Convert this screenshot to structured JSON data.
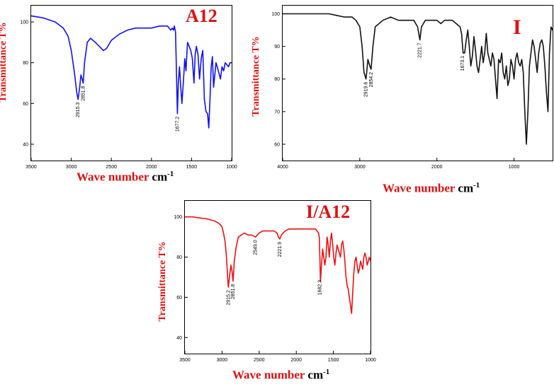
{
  "chart_data": [
    {
      "type": "line",
      "tag": "A12",
      "xlabel_word": "Wave number",
      "xlabel_unit": "cm",
      "xlabel_exp": "-1",
      "ylabel": "Transmittance T%",
      "xlim": [
        3500,
        1000
      ],
      "ylim": [
        32,
        108
      ],
      "xticks": [
        3500,
        3000,
        2500,
        2000,
        1500,
        1000
      ],
      "yticks": [
        40,
        60,
        80,
        100
      ],
      "color": "#1010ee",
      "x": [
        3500,
        3350,
        3200,
        3100,
        3040,
        3000,
        2960,
        2930,
        2915,
        2895,
        2880,
        2865,
        2851,
        2835,
        2800,
        2760,
        2700,
        2650,
        2600,
        2560,
        2500,
        2400,
        2300,
        2200,
        2100,
        2000,
        1900,
        1800,
        1760,
        1740,
        1725,
        1715,
        1700,
        1690,
        1677,
        1665,
        1650,
        1635,
        1620,
        1600,
        1585,
        1570,
        1550,
        1530,
        1510,
        1490,
        1470,
        1455,
        1440,
        1420,
        1400,
        1380,
        1360,
        1340,
        1320,
        1300,
        1285,
        1270,
        1255,
        1240,
        1225,
        1210,
        1195,
        1180,
        1160,
        1140,
        1120,
        1100,
        1080,
        1060,
        1040,
        1020,
        1000
      ],
      "y": [
        103,
        102,
        100,
        97,
        93,
        86,
        75,
        65,
        62,
        68,
        74,
        72,
        70,
        80,
        90,
        92,
        90,
        88,
        86,
        87,
        91,
        94,
        96,
        97,
        97,
        97,
        98,
        98,
        96,
        97,
        96,
        98,
        95,
        78,
        55,
        70,
        78,
        68,
        60,
        72,
        82,
        76,
        90,
        88,
        86,
        82,
        70,
        84,
        88,
        84,
        72,
        82,
        86,
        62,
        56,
        55,
        48,
        62,
        78,
        83,
        68,
        74,
        80,
        78,
        75,
        72,
        78,
        76,
        80,
        79,
        78,
        80,
        80
      ],
      "annotations": [
        {
          "label": "2915.3",
          "x": 2915,
          "y": 62
        },
        {
          "label": "2851.8",
          "x": 2851,
          "y": 70
        },
        {
          "label": "1677.2",
          "x": 1677,
          "y": 55
        }
      ]
    },
    {
      "type": "line",
      "tag": "I",
      "xlabel_word": "Wave number",
      "xlabel_unit": "cm",
      "xlabel_exp": "-1",
      "ylabel": "Transmittance T%",
      "xlim": [
        4000,
        500
      ],
      "ylim": [
        55,
        102.5
      ],
      "xticks": [
        4000,
        3000,
        2000,
        1000
      ],
      "yticks": [
        60,
        70,
        80,
        90,
        100
      ],
      "color": "#111111",
      "x": [
        4000,
        3800,
        3600,
        3400,
        3300,
        3200,
        3100,
        3050,
        3000,
        2970,
        2945,
        2919,
        2895,
        2870,
        2854,
        2830,
        2800,
        2700,
        2600,
        2500,
        2400,
        2300,
        2250,
        2221,
        2200,
        2150,
        2100,
        2000,
        1950,
        1900,
        1850,
        1800,
        1750,
        1700,
        1680,
        1660,
        1640,
        1620,
        1600,
        1580,
        1560,
        1540,
        1520,
        1500,
        1480,
        1460,
        1440,
        1420,
        1400,
        1380,
        1360,
        1340,
        1320,
        1300,
        1280,
        1260,
        1240,
        1220,
        1200,
        1180,
        1160,
        1140,
        1120,
        1100,
        1080,
        1060,
        1040,
        1020,
        1000,
        980,
        960,
        940,
        920,
        900,
        880,
        860,
        840,
        820,
        800,
        780,
        760,
        740,
        720,
        700,
        680,
        660,
        640,
        620,
        600,
        580,
        560,
        540,
        520,
        500
      ],
      "y": [
        100,
        100,
        100,
        100,
        99.5,
        99,
        99,
        98,
        96,
        90,
        82,
        80,
        86,
        84,
        83,
        90,
        96,
        98,
        99,
        98,
        98,
        98,
        96,
        92,
        96,
        98,
        98,
        98,
        97,
        98,
        98,
        98,
        97,
        96,
        94,
        88,
        88,
        92,
        95,
        90,
        84,
        87,
        93,
        89,
        84,
        82,
        86,
        90,
        85,
        88,
        94,
        88,
        86,
        84,
        88,
        86,
        80,
        74,
        86,
        85,
        88,
        82,
        80,
        84,
        78,
        80,
        86,
        84,
        80,
        86,
        88,
        85,
        84,
        86,
        82,
        70,
        60,
        70,
        84,
        88,
        92,
        90,
        86,
        82,
        88,
        91,
        92,
        90,
        84,
        76,
        70,
        88,
        96,
        95
      ],
      "annotations": [
        {
          "label": "2919.6",
          "x": 2919,
          "y": 80
        },
        {
          "label": "2854.2",
          "x": 2854,
          "y": 83
        },
        {
          "label": "2221.7",
          "x": 2221,
          "y": 92
        },
        {
          "label": "1673.1",
          "x": 1665,
          "y": 88
        }
      ]
    },
    {
      "type": "line",
      "tag": "I/A12",
      "xlabel_word": "Wave number",
      "xlabel_unit": "cm",
      "xlabel_exp": "-1",
      "ylabel": "Transmittance T%",
      "xlim": [
        3500,
        1000
      ],
      "ylim": [
        32,
        108
      ],
      "xticks": [
        3500,
        3000,
        2500,
        2000,
        1500,
        1000
      ],
      "yticks": [
        40,
        60,
        80,
        100
      ],
      "color": "#ee1111",
      "x": [
        3500,
        3400,
        3300,
        3200,
        3100,
        3050,
        3020,
        3000,
        2980,
        2960,
        2940,
        2925,
        2915,
        2900,
        2880,
        2865,
        2851,
        2835,
        2810,
        2780,
        2740,
        2700,
        2650,
        2600,
        2549,
        2500,
        2450,
        2400,
        2350,
        2300,
        2260,
        2240,
        2221,
        2200,
        2150,
        2100,
        2000,
        1900,
        1800,
        1740,
        1720,
        1700,
        1690,
        1682,
        1675,
        1660,
        1645,
        1630,
        1615,
        1600,
        1585,
        1570,
        1555,
        1540,
        1525,
        1510,
        1495,
        1480,
        1465,
        1450,
        1435,
        1420,
        1405,
        1390,
        1375,
        1360,
        1345,
        1330,
        1315,
        1300,
        1285,
        1270,
        1255,
        1240,
        1225,
        1210,
        1195,
        1180,
        1165,
        1150,
        1135,
        1120,
        1105,
        1090,
        1075,
        1060,
        1045,
        1030,
        1015,
        1000
      ],
      "y": [
        100,
        100,
        99.5,
        99,
        98,
        97,
        96,
        95,
        92,
        88,
        80,
        70,
        65,
        70,
        76,
        73,
        68,
        78,
        85,
        90,
        91,
        92,
        91,
        91,
        90,
        92,
        93,
        93,
        93,
        93,
        92,
        90,
        89,
        91,
        93,
        94,
        94,
        94,
        94,
        94,
        93,
        92,
        90,
        80,
        68,
        76,
        84,
        80,
        76,
        80,
        90,
        86,
        80,
        88,
        92,
        86,
        80,
        76,
        82,
        86,
        84,
        82,
        80,
        86,
        88,
        84,
        78,
        70,
        66,
        64,
        60,
        56,
        52,
        62,
        72,
        78,
        80,
        76,
        72,
        74,
        78,
        76,
        74,
        80,
        82,
        80,
        76,
        78,
        80,
        78
      ],
      "annotations": [
        {
          "label": "2915.2",
          "x": 2915,
          "y": 65
        },
        {
          "label": "2851.8",
          "x": 2851,
          "y": 68
        },
        {
          "label": "2549.0",
          "x": 2549,
          "y": 90
        },
        {
          "label": "2221.9",
          "x": 2221,
          "y": 89
        },
        {
          "label": "1682.3",
          "x": 1680,
          "y": 70
        }
      ]
    }
  ]
}
